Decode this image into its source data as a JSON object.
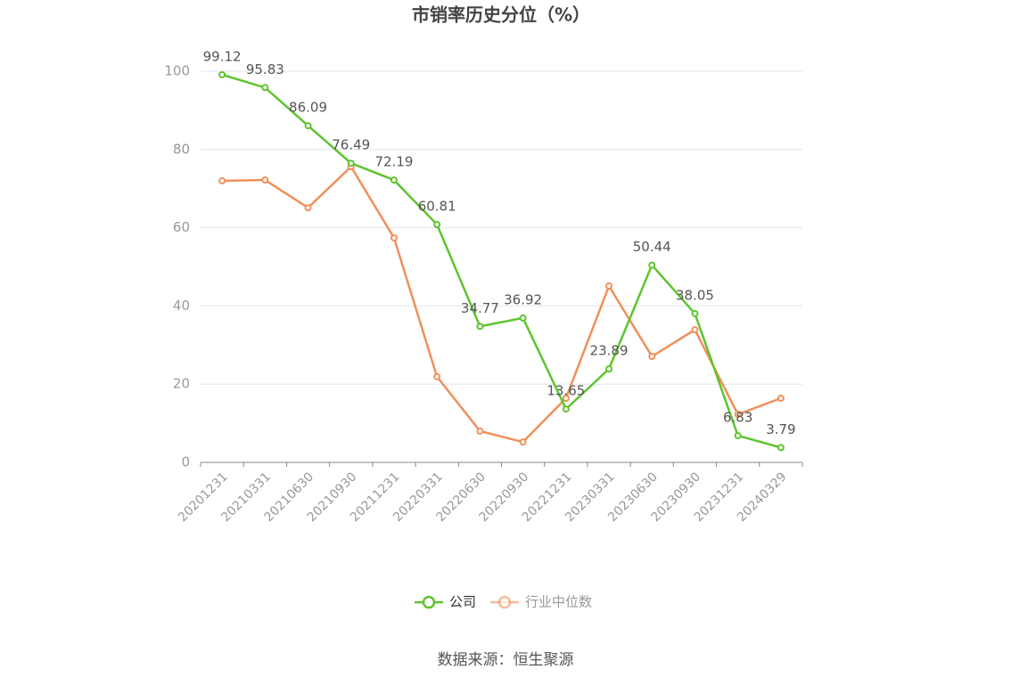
{
  "chart_data": {
    "type": "line",
    "title": "市销率历史分位（%）",
    "categories": [
      "20201231",
      "20210331",
      "20210630",
      "20210930",
      "20211231",
      "20220331",
      "20220630",
      "20220930",
      "20221231",
      "20230331",
      "20230630",
      "20230930",
      "20231231",
      "20240329"
    ],
    "series": [
      {
        "name": "公司",
        "color": "#5ec42e",
        "values": [
          99.12,
          95.83,
          86.09,
          76.49,
          72.19,
          60.81,
          34.77,
          36.92,
          13.65,
          23.89,
          50.44,
          38.05,
          6.83,
          3.79
        ],
        "data_labels": true
      },
      {
        "name": "行业中位数",
        "color": "#f0905a",
        "values": [
          72.0,
          72.2,
          65.1,
          75.6,
          57.4,
          21.9,
          8.0,
          5.2,
          16.4,
          45.1,
          27.1,
          33.9,
          12.3,
          16.4
        ],
        "data_labels": false
      }
    ],
    "ylim": [
      0,
      100
    ],
    "yticks": [
      0,
      20,
      40,
      60,
      80,
      100
    ],
    "grid": true,
    "source": "数据来源：恒生聚源"
  }
}
